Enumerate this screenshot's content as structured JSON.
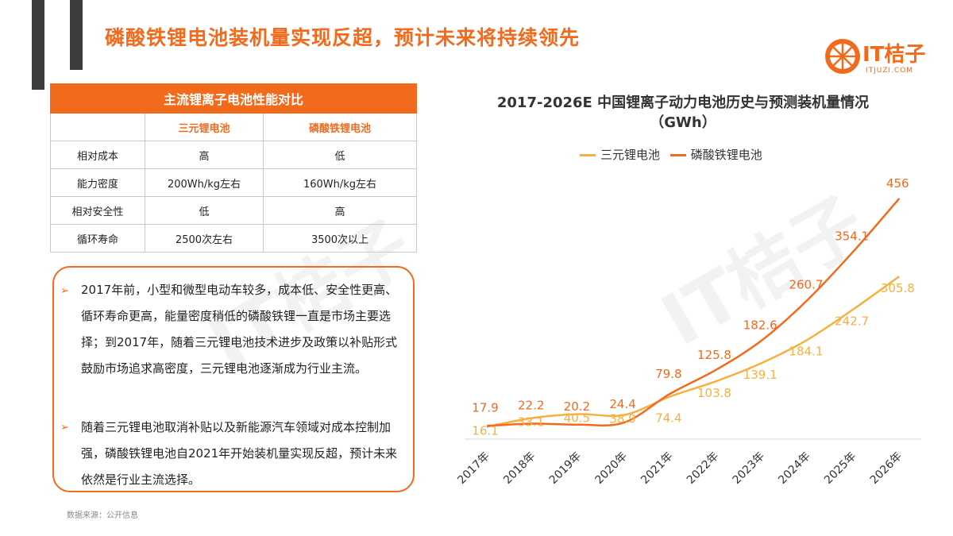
{
  "header": {
    "title": "磷酸铁锂电池装机量实现反超，预计未来将持续领先"
  },
  "logo": {
    "text": "IT桔子",
    "sub": "ITJUZI.COM"
  },
  "comparison_table": {
    "title": "主流锂离子电池性能对比",
    "columns": [
      "",
      "三元锂电池",
      "磷酸铁锂电池"
    ],
    "rows": [
      [
        "相对成本",
        "高",
        "低"
      ],
      [
        "能力密度",
        "200Wh/kg左右",
        "160Wh/kg左右"
      ],
      [
        "相对安全性",
        "低",
        "高"
      ],
      [
        "循环寿命",
        "2500次左右",
        "3500次以上"
      ]
    ]
  },
  "notes": {
    "bullet": "➢",
    "items": [
      "2017年前，小型和微型电动车较多，成本低、安全性更高、循环寿命更高，能量密度稍低的磷酸铁锂一直是市场主要选择；到2017年，随着三元锂电池技术进步及政策以补贴形式鼓励市场追求高密度，三元锂电池逐渐成为行业主流。",
      "随着三元锂电池取消补贴以及新能源汽车领域对成本控制加强，磷酸铁锂电池自2021年开始装机量实现反超，预计未来依然是行业主流选择。"
    ]
  },
  "source": "数据来源：公开信息",
  "chart_data": {
    "type": "line",
    "title": "2017-2026E 中国锂离子动力电池历史与预测装机量情况（GWh）",
    "categories": [
      "2017年",
      "2018年",
      "2019年",
      "2020年",
      "2021年",
      "2022年",
      "2023年",
      "2024年",
      "2025年",
      "2026年"
    ],
    "series": [
      {
        "name": "三元锂电池",
        "color": "#f5b041",
        "values": [
          16.1,
          33.1,
          40.5,
          38.9,
          74.4,
          103.8,
          139.1,
          184.1,
          242.7,
          305.8
        ]
      },
      {
        "name": "磷酸铁锂电池",
        "color": "#f26a1b",
        "values": [
          17.9,
          22.2,
          20.2,
          24.4,
          79.8,
          125.8,
          182.6,
          260.7,
          354.1,
          456
        ]
      }
    ],
    "ylim": [
      0,
      456
    ],
    "grid": false,
    "legend_position": "top"
  },
  "colors": {
    "accent": "#f26a1b",
    "accent_light": "#f5b041",
    "deco_bar": "#3c3c3c"
  }
}
